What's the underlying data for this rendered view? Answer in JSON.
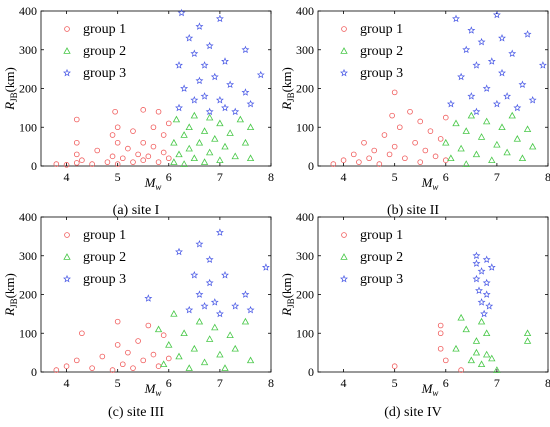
{
  "chart_data": [
    {
      "type": "scatter",
      "caption": "(a) site I",
      "xlabel": "M",
      "xlabel_sub": "w",
      "ylabel": "R",
      "ylabel_sub": "JB",
      "ylabel_unit": "(km)",
      "xlim": [
        3.5,
        8
      ],
      "ylim": [
        0,
        400
      ],
      "xticks": [
        "4",
        "5",
        "6",
        "7",
        "8"
      ],
      "yticks": [
        "0",
        "100",
        "200",
        "300",
        "400"
      ],
      "legend": "top-left",
      "series": [
        {
          "name": "group 1",
          "color": "#f05a5a",
          "marker": "circle",
          "points": [
            [
              3.8,
              5
            ],
            [
              4.0,
              3
            ],
            [
              4.2,
              8
            ],
            [
              4.2,
              30
            ],
            [
              4.2,
              60
            ],
            [
              4.2,
              120
            ],
            [
              4.3,
              15
            ],
            [
              4.5,
              5
            ],
            [
              4.6,
              40
            ],
            [
              4.8,
              10
            ],
            [
              4.9,
              25
            ],
            [
              4.9,
              80
            ],
            [
              4.95,
              140
            ],
            [
              5.0,
              5
            ],
            [
              5.0,
              60
            ],
            [
              5.0,
              100
            ],
            [
              5.1,
              20
            ],
            [
              5.2,
              45
            ],
            [
              5.3,
              10
            ],
            [
              5.3,
              90
            ],
            [
              5.4,
              30
            ],
            [
              5.5,
              15
            ],
            [
              5.5,
              60
            ],
            [
              5.5,
              145
            ],
            [
              5.6,
              25
            ],
            [
              5.7,
              50
            ],
            [
              5.7,
              100
            ],
            [
              5.8,
              10
            ],
            [
              5.8,
              140
            ],
            [
              5.9,
              35
            ],
            [
              5.9,
              80
            ],
            [
              6.0,
              20
            ],
            [
              6.0,
              110
            ]
          ]
        },
        {
          "name": "group 2",
          "color": "#48c848",
          "marker": "triangle",
          "points": [
            [
              6.1,
              10
            ],
            [
              6.1,
              60
            ],
            [
              6.15,
              120
            ],
            [
              6.2,
              30
            ],
            [
              6.3,
              80
            ],
            [
              6.3,
              5
            ],
            [
              6.4,
              45
            ],
            [
              6.4,
              100
            ],
            [
              6.5,
              20
            ],
            [
              6.5,
              130
            ],
            [
              6.6,
              60
            ],
            [
              6.7,
              10
            ],
            [
              6.7,
              90
            ],
            [
              6.8,
              35
            ],
            [
              6.8,
              125
            ],
            [
              6.9,
              70
            ],
            [
              7.0,
              15
            ],
            [
              7.0,
              110
            ],
            [
              7.1,
              50
            ],
            [
              7.2,
              85
            ],
            [
              7.3,
              25
            ],
            [
              7.4,
              120
            ],
            [
              7.5,
              60
            ],
            [
              7.6,
              20
            ],
            [
              7.6,
              100
            ]
          ]
        },
        {
          "name": "group 3",
          "color": "#4a5ae6",
          "marker": "star",
          "points": [
            [
              6.2,
              150
            ],
            [
              6.2,
              260
            ],
            [
              6.25,
              395
            ],
            [
              6.3,
              200
            ],
            [
              6.4,
              330
            ],
            [
              6.5,
              170
            ],
            [
              6.5,
              290
            ],
            [
              6.6,
              220
            ],
            [
              6.6,
              360
            ],
            [
              6.7,
              180
            ],
            [
              6.7,
              260
            ],
            [
              6.8,
              310
            ],
            [
              6.8,
              140
            ],
            [
              6.9,
              230
            ],
            [
              7.0,
              380
            ],
            [
              7.0,
              170
            ],
            [
              7.1,
              270
            ],
            [
              7.1,
              150
            ],
            [
              7.2,
              210
            ],
            [
              7.3,
              140
            ],
            [
              7.5,
              190
            ],
            [
              7.5,
              300
            ],
            [
              7.6,
              160
            ],
            [
              7.8,
              235
            ]
          ]
        }
      ]
    },
    {
      "type": "scatter",
      "caption": "(b) site II",
      "xlabel": "M",
      "xlabel_sub": "w",
      "ylabel": "R",
      "ylabel_sub": "JB",
      "ylabel_unit": "(km)",
      "xlim": [
        3.5,
        8
      ],
      "ylim": [
        0,
        400
      ],
      "xticks": [
        "4",
        "5",
        "6",
        "7",
        "8"
      ],
      "yticks": [
        "0",
        "100",
        "200",
        "300",
        "400"
      ],
      "legend": "top-left",
      "series": [
        {
          "name": "group 1",
          "color": "#f05a5a",
          "marker": "circle",
          "points": [
            [
              3.8,
              5
            ],
            [
              4.0,
              15
            ],
            [
              4.2,
              30
            ],
            [
              4.3,
              10
            ],
            [
              4.4,
              60
            ],
            [
              4.5,
              20
            ],
            [
              4.6,
              40
            ],
            [
              4.7,
              5
            ],
            [
              4.8,
              80
            ],
            [
              4.9,
              30
            ],
            [
              4.95,
              130
            ],
            [
              5.0,
              190
            ],
            [
              5.0,
              50
            ],
            [
              5.1,
              100
            ],
            [
              5.2,
              20
            ],
            [
              5.3,
              140
            ],
            [
              5.4,
              60
            ],
            [
              5.5,
              10
            ],
            [
              5.5,
              115
            ],
            [
              5.6,
              40
            ],
            [
              5.7,
              90
            ],
            [
              5.8,
              25
            ],
            [
              5.9,
              70
            ],
            [
              6.0,
              15
            ],
            [
              6.0,
              125
            ]
          ]
        },
        {
          "name": "group 2",
          "color": "#48c848",
          "marker": "triangle",
          "points": [
            [
              6.0,
              60
            ],
            [
              6.1,
              20
            ],
            [
              6.2,
              110
            ],
            [
              6.3,
              45
            ],
            [
              6.4,
              5
            ],
            [
              6.4,
              90
            ],
            [
              6.5,
              130
            ],
            [
              6.6,
              30
            ],
            [
              6.7,
              75
            ],
            [
              6.8,
              115
            ],
            [
              6.9,
              15
            ],
            [
              7.0,
              55
            ],
            [
              7.1,
              100
            ],
            [
              7.2,
              35
            ],
            [
              7.3,
              130
            ],
            [
              7.4,
              70
            ],
            [
              7.5,
              20
            ],
            [
              7.6,
              95
            ],
            [
              7.7,
              50
            ]
          ]
        },
        {
          "name": "group 3",
          "color": "#4a5ae6",
          "marker": "star",
          "points": [
            [
              6.1,
              160
            ],
            [
              6.2,
              380
            ],
            [
              6.3,
              230
            ],
            [
              6.4,
              300
            ],
            [
              6.5,
              180
            ],
            [
              6.5,
              350
            ],
            [
              6.6,
              260
            ],
            [
              6.6,
              140
            ],
            [
              6.7,
              320
            ],
            [
              6.8,
              200
            ],
            [
              6.9,
              270
            ],
            [
              7.0,
              390
            ],
            [
              7.0,
              160
            ],
            [
              7.1,
              240
            ],
            [
              7.1,
              330
            ],
            [
              7.2,
              180
            ],
            [
              7.3,
              290
            ],
            [
              7.4,
              150
            ],
            [
              7.5,
              210
            ],
            [
              7.6,
              340
            ],
            [
              7.7,
              170
            ],
            [
              7.9,
              260
            ]
          ]
        }
      ]
    },
    {
      "type": "scatter",
      "caption": "(c) site III",
      "xlabel": "M",
      "xlabel_sub": "w",
      "ylabel": "R",
      "ylabel_sub": "JB",
      "ylabel_unit": "(km)",
      "xlim": [
        3.5,
        8
      ],
      "ylim": [
        0,
        400
      ],
      "xticks": [
        "4",
        "5",
        "6",
        "7",
        "8"
      ],
      "yticks": [
        "0",
        "100",
        "200",
        "300",
        "400"
      ],
      "legend": "top-left",
      "series": [
        {
          "name": "group 1",
          "color": "#f05a5a",
          "marker": "circle",
          "points": [
            [
              3.8,
              5
            ],
            [
              4.0,
              15
            ],
            [
              4.2,
              30
            ],
            [
              4.3,
              100
            ],
            [
              4.5,
              10
            ],
            [
              4.7,
              40
            ],
            [
              4.9,
              5
            ],
            [
              5.0,
              130
            ],
            [
              5.0,
              70
            ],
            [
              5.1,
              20
            ],
            [
              5.2,
              50
            ],
            [
              5.3,
              10
            ],
            [
              5.4,
              80
            ],
            [
              5.5,
              30
            ],
            [
              5.6,
              120
            ],
            [
              5.7,
              45
            ],
            [
              5.8,
              15
            ],
            [
              5.9,
              95
            ],
            [
              6.0,
              35
            ]
          ]
        },
        {
          "name": "group 2",
          "color": "#48c848",
          "marker": "triangle",
          "points": [
            [
              5.8,
              110
            ],
            [
              5.9,
              20
            ],
            [
              6.0,
              70
            ],
            [
              6.1,
              150
            ],
            [
              6.2,
              40
            ],
            [
              6.3,
              100
            ],
            [
              6.4,
              10
            ],
            [
              6.5,
              60
            ],
            [
              6.6,
              130
            ],
            [
              6.7,
              25
            ],
            [
              6.8,
              85
            ],
            [
              6.9,
              115
            ],
            [
              7.0,
              45
            ],
            [
              7.1,
              10
            ],
            [
              7.2,
              95
            ],
            [
              7.3,
              60
            ],
            [
              7.5,
              130
            ],
            [
              7.6,
              30
            ]
          ]
        },
        {
          "name": "group 3",
          "color": "#4a5ae6",
          "marker": "star",
          "points": [
            [
              5.6,
              190
            ],
            [
              6.2,
              310
            ],
            [
              6.4,
              160
            ],
            [
              6.5,
              250
            ],
            [
              6.6,
              330
            ],
            [
              6.6,
              200
            ],
            [
              6.7,
              170
            ],
            [
              6.8,
              290
            ],
            [
              6.8,
              230
            ],
            [
              6.9,
              180
            ],
            [
              7.0,
              360
            ],
            [
              7.0,
              150
            ],
            [
              7.1,
              250
            ],
            [
              7.3,
              170
            ],
            [
              7.5,
              200
            ],
            [
              7.6,
              160
            ],
            [
              7.9,
              270
            ]
          ]
        }
      ]
    },
    {
      "type": "scatter",
      "caption": "(d) site IV",
      "xlabel": "M",
      "xlabel_sub": "w",
      "ylabel": "R",
      "ylabel_sub": "JB",
      "ylabel_unit": "(km)",
      "xlim": [
        3.5,
        8
      ],
      "ylim": [
        0,
        400
      ],
      "xticks": [
        "4",
        "5",
        "6",
        "7",
        "8"
      ],
      "yticks": [
        "0",
        "100",
        "200",
        "300",
        "400"
      ],
      "legend": "top-left",
      "series": [
        {
          "name": "group 1",
          "color": "#f05a5a",
          "marker": "circle",
          "points": [
            [
              5.0,
              15
            ],
            [
              5.9,
              120
            ],
            [
              5.9,
              100
            ],
            [
              5.9,
              60
            ],
            [
              6.0,
              30
            ],
            [
              6.3,
              5
            ]
          ]
        },
        {
          "name": "group 2",
          "color": "#48c848",
          "marker": "triangle",
          "points": [
            [
              6.2,
              60
            ],
            [
              6.3,
              140
            ],
            [
              6.4,
              110
            ],
            [
              6.5,
              30
            ],
            [
              6.6,
              80
            ],
            [
              6.6,
              50
            ],
            [
              6.7,
              130
            ],
            [
              6.7,
              20
            ],
            [
              6.8,
              100
            ],
            [
              6.8,
              45
            ],
            [
              6.9,
              35
            ],
            [
              7.0,
              5
            ],
            [
              7.6,
              100
            ],
            [
              7.6,
              80
            ]
          ]
        },
        {
          "name": "group 3",
          "color": "#4a5ae6",
          "marker": "star",
          "points": [
            [
              6.6,
              300
            ],
            [
              6.6,
              280
            ],
            [
              6.6,
              240
            ],
            [
              6.65,
              210
            ],
            [
              6.7,
              260
            ],
            [
              6.7,
              180
            ],
            [
              6.75,
              150
            ],
            [
              6.8,
              290
            ],
            [
              6.8,
              230
            ],
            [
              6.8,
              200
            ],
            [
              6.85,
              170
            ],
            [
              6.9,
              270
            ]
          ]
        }
      ]
    }
  ]
}
